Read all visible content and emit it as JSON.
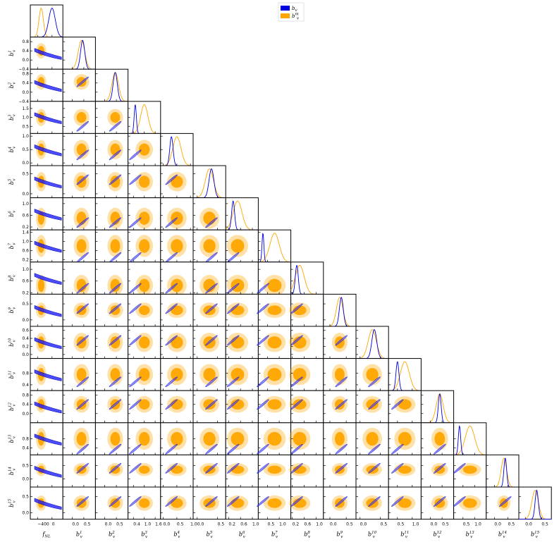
{
  "chart_data": {
    "type": "corner",
    "title": "",
    "parameters": [
      "f_NL",
      "b_v^1",
      "b_v^2",
      "b_v^3",
      "b_v^4",
      "b_v^5",
      "b_v^6",
      "b_v^7",
      "b_v^8",
      "b_v^9",
      "b_v^10",
      "b_v^11",
      "b_v^12",
      "b_v^13",
      "b_v^14",
      "b_v^15"
    ],
    "x_labels": [
      {
        "base": "f",
        "sub": "NL"
      },
      {
        "base": "b",
        "sub": "v",
        "sup": "1"
      },
      {
        "base": "b",
        "sub": "v",
        "sup": "2"
      },
      {
        "base": "b",
        "sub": "v",
        "sup": "3"
      },
      {
        "base": "b",
        "sub": "v",
        "sup": "4"
      },
      {
        "base": "b",
        "sub": "v",
        "sup": "5"
      },
      {
        "base": "b",
        "sub": "v",
        "sup": "6"
      },
      {
        "base": "b",
        "sub": "v",
        "sup": "7"
      },
      {
        "base": "b",
        "sub": "v",
        "sup": "8"
      },
      {
        "base": "b",
        "sub": "v",
        "sup": "9"
      },
      {
        "base": "b",
        "sub": "v",
        "sup": "10"
      },
      {
        "base": "b",
        "sub": "v",
        "sup": "11"
      },
      {
        "base": "b",
        "sub": "v",
        "sup": "12"
      },
      {
        "base": "b",
        "sub": "v",
        "sup": "13"
      },
      {
        "base": "b",
        "sub": "v",
        "sup": "14"
      },
      {
        "base": "b",
        "sub": "v",
        "sup": "15"
      }
    ],
    "ranges": [
      [
        -600,
        300
      ],
      [
        -0.4,
        1.0
      ],
      [
        -0.4,
        1.0
      ],
      [
        0.1,
        1.9
      ],
      [
        -0.1,
        1.1
      ],
      [
        -0.1,
        0.7
      ],
      [
        0.1,
        1.2
      ],
      [
        0.1,
        1.5
      ],
      [
        0.15,
        1.25
      ],
      [
        -0.2,
        0.8
      ],
      [
        -0.1,
        0.7
      ],
      [
        0.2,
        1.3
      ],
      [
        -0.4,
        1.0
      ],
      [
        0.1,
        1.5
      ],
      [
        -0.3,
        0.9
      ],
      [
        -0.2,
        0.8
      ]
    ],
    "x_ticks": [
      [
        "−400",
        "0"
      ],
      [
        "0.0",
        "0.5"
      ],
      [
        "0.0",
        "0.5"
      ],
      [
        "0.4",
        "1.0",
        "1.6"
      ],
      [
        "0.0",
        "0.5",
        "1.0"
      ],
      [
        "0.0",
        "0.5"
      ],
      [
        "0.2",
        "0.6",
        "1.0"
      ],
      [
        "0.5",
        "1.0"
      ],
      [
        "0.2",
        "0.6",
        "1.0"
      ],
      [
        "0.0",
        "0.5"
      ],
      [
        "0.0",
        "0.5"
      ],
      [
        "0.5",
        "1.0"
      ],
      [
        "0.0",
        "0.5"
      ],
      [
        "0.5",
        "1.0"
      ],
      [
        "0.0",
        "0.5"
      ],
      [
        "0.0",
        "0.5"
      ]
    ],
    "x_tick_values": [
      [
        -400,
        0
      ],
      [
        0,
        0.5
      ],
      [
        0,
        0.5
      ],
      [
        0.4,
        1.0,
        1.6
      ],
      [
        0,
        0.5,
        1.0
      ],
      [
        0,
        0.5
      ],
      [
        0.2,
        0.6,
        1.0
      ],
      [
        0.5,
        1.0
      ],
      [
        0.2,
        0.6,
        1.0
      ],
      [
        0,
        0.5
      ],
      [
        0,
        0.5
      ],
      [
        0.5,
        1.0
      ],
      [
        0,
        0.5
      ],
      [
        0.5,
        1.0
      ],
      [
        0,
        0.5
      ],
      [
        0,
        0.5
      ]
    ],
    "y_ticks": [
      [],
      [
        "−0.4",
        "0.0",
        "0.4",
        "0.8"
      ],
      [
        "−0.4",
        "0.0",
        "0.4",
        "0.8"
      ],
      [
        "0.5",
        "1.0",
        "1.5"
      ],
      [
        "0.0",
        "0.5",
        "1.0"
      ],
      [
        "0.0",
        "0.5"
      ],
      [
        "0.2",
        "0.6",
        "1.0"
      ],
      [
        "0.2",
        "0.6",
        "1.0",
        "1.4"
      ],
      [
        "0.2",
        "0.6",
        "1.0"
      ],
      [
        "0.0",
        "0.5"
      ],
      [
        "0.0",
        "0.2",
        "0.4",
        "0.6"
      ],
      [
        "0.4",
        "0.8"
      ],
      [
        "0.0",
        "0.4",
        "0.8"
      ],
      [
        "0.4",
        "0.8"
      ],
      [
        "0.0",
        "0.5"
      ],
      [
        "0.0",
        "0.5"
      ]
    ],
    "y_tick_values": [
      [],
      [
        -0.4,
        0,
        0.4,
        0.8
      ],
      [
        -0.4,
        0,
        0.4,
        0.8
      ],
      [
        0.5,
        1.0,
        1.5
      ],
      [
        0,
        0.5,
        1.0
      ],
      [
        0,
        0.5
      ],
      [
        0.2,
        0.6,
        1.0
      ],
      [
        0.2,
        0.6,
        1.0,
        1.4
      ],
      [
        0.2,
        0.6,
        1.0
      ],
      [
        0,
        0.5
      ],
      [
        0,
        0.2,
        0.4,
        0.6
      ],
      [
        0.4,
        0.8
      ],
      [
        0,
        0.4,
        0.8
      ],
      [
        0.4,
        0.8
      ],
      [
        0,
        0.5
      ],
      [
        0,
        0.5
      ]
    ],
    "series": [
      {
        "name": "b_v",
        "label": {
          "base": "b",
          "sub": "v"
        },
        "color": "#0000e0",
        "means": [
          0,
          0.45,
          0.45,
          0.5,
          0.3,
          0.35,
          0.35,
          0.3,
          0.35,
          0.35,
          0.35,
          0.5,
          0.4,
          0.35,
          0.4,
          0.35
        ],
        "sigmas": [
          90,
          0.09,
          0.09,
          0.06,
          0.06,
          0.06,
          0.05,
          0.04,
          0.05,
          0.06,
          0.06,
          0.05,
          0.06,
          0.05,
          0.05,
          0.05
        ]
      },
      {
        "name": "b_v^m",
        "label": {
          "base": "b",
          "sub": "v",
          "sup": "m"
        },
        "color": "#ffa500",
        "means": [
          -300,
          0.4,
          0.45,
          1.0,
          0.5,
          0.3,
          0.5,
          0.8,
          0.45,
          0.3,
          0.3,
          0.75,
          0.4,
          0.8,
          0.35,
          0.3
        ],
        "sigmas": [
          60,
          0.14,
          0.14,
          0.2,
          0.15,
          0.1,
          0.15,
          0.2,
          0.15,
          0.1,
          0.1,
          0.15,
          0.15,
          0.2,
          0.1,
          0.1
        ]
      }
    ],
    "contour_levels": [
      "1-sigma",
      "2-sigma"
    ],
    "grid": false,
    "legend": "top-center"
  }
}
